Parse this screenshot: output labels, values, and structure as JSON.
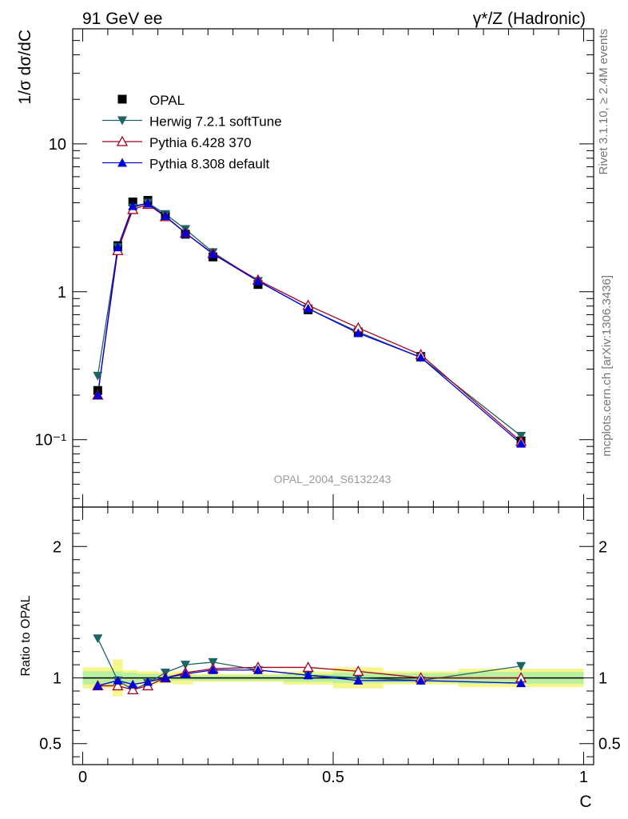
{
  "header": {
    "left": "91 GeV ee",
    "right": "γ*/Z (Hadronic)"
  },
  "side_labels": {
    "rivet": "Rivet 3.1.10, ≥ 2.4M events",
    "mcplots": "mcplots.cern.ch [arXiv:1306.3436]"
  },
  "watermark": "OPAL_2004_S6132243",
  "colors": {
    "data": "#000000",
    "herwig": "#1f6464",
    "pythia6": "#a0001e",
    "pythia8": "#0000d8",
    "band_inner": "#b8f0a0",
    "band_outer": "#f6f68a"
  },
  "chart_data": [
    {
      "type": "scatter",
      "panel": "main",
      "ylabel": "1/σ dσ/dC",
      "yscale": "log",
      "ylim": [
        0.035,
        60
      ],
      "xlim": [
        -0.02,
        1.02
      ],
      "y_ticks": [
        {
          "value": 0.1,
          "label": "10⁻¹"
        },
        {
          "value": 1,
          "label": "1"
        },
        {
          "value": 10,
          "label": "10"
        }
      ],
      "x": [
        0.03,
        0.07,
        0.1,
        0.13,
        0.165,
        0.205,
        0.26,
        0.35,
        0.45,
        0.55,
        0.675,
        0.875
      ],
      "series": [
        {
          "name": "OPAL",
          "marker": "square",
          "values": [
            0.215,
            2.05,
            4.05,
            4.15,
            3.25,
            2.45,
            1.72,
            1.12,
            0.755,
            0.535,
            0.365,
            0.098
          ]
        },
        {
          "name": "Herwig 7.2.1 softTune",
          "marker": "triangle-down",
          "values": [
            0.27,
            2.0,
            3.7,
            4.0,
            3.35,
            2.65,
            1.85,
            1.18,
            0.77,
            0.535,
            0.36,
            0.106
          ]
        },
        {
          "name": "Pythia 6.428 370",
          "marker": "triangle-up-open",
          "values": [
            0.2,
            1.9,
            3.6,
            3.9,
            3.22,
            2.5,
            1.81,
            1.2,
            0.81,
            0.57,
            0.375,
            0.097
          ]
        },
        {
          "name": "Pythia 8.308 default",
          "marker": "triangle-up",
          "values": [
            0.2,
            2.0,
            3.8,
            3.95,
            3.25,
            2.5,
            1.8,
            1.18,
            0.77,
            0.525,
            0.36,
            0.094
          ]
        }
      ]
    },
    {
      "type": "scatter",
      "panel": "ratio",
      "xlabel": "C",
      "ylabel": "Ratio to OPAL",
      "ylim": [
        0.34,
        2.3
      ],
      "xlim": [
        -0.02,
        1.02
      ],
      "x_ticks": [
        {
          "value": 0,
          "label": "0"
        },
        {
          "value": 0.5,
          "label": "0.5"
        },
        {
          "value": 1,
          "label": "1"
        }
      ],
      "y_ticks": [
        {
          "value": 0.5,
          "label": "0.5"
        },
        {
          "value": 1,
          "label": "1"
        },
        {
          "value": 2,
          "label": "2"
        }
      ],
      "x": [
        0.03,
        0.07,
        0.1,
        0.13,
        0.165,
        0.205,
        0.26,
        0.35,
        0.45,
        0.55,
        0.675,
        0.875
      ],
      "bins": [
        [
          0,
          0.06
        ],
        [
          0.06,
          0.08
        ],
        [
          0.08,
          0.11
        ],
        [
          0.11,
          0.15
        ],
        [
          0.15,
          0.18
        ],
        [
          0.18,
          0.22
        ],
        [
          0.22,
          0.3
        ],
        [
          0.3,
          0.4
        ],
        [
          0.4,
          0.5
        ],
        [
          0.5,
          0.6
        ],
        [
          0.6,
          0.75
        ],
        [
          0.75,
          1.0
        ]
      ],
      "band_inner": [
        0.05,
        0.05,
        0.04,
        0.03,
        0.025,
        0.02,
        0.02,
        0.02,
        0.03,
        0.04,
        0.035,
        0.045
      ],
      "band_outer": [
        0.08,
        0.14,
        0.06,
        0.05,
        0.04,
        0.05,
        0.03,
        0.03,
        0.05,
        0.08,
        0.05,
        0.07
      ],
      "series": [
        {
          "name": "Herwig 7.2.1 softTune",
          "values": [
            1.3,
            0.98,
            0.91,
            0.96,
            1.04,
            1.1,
            1.12,
            1.06,
            1.02,
            1.0,
            0.98,
            1.09
          ]
        },
        {
          "name": "Pythia 6.428 370",
          "values": [
            0.94,
            0.94,
            0.91,
            0.94,
            1.0,
            1.04,
            1.07,
            1.08,
            1.08,
            1.05,
            1.0,
            1.0
          ]
        },
        {
          "name": "Pythia 8.308 default",
          "values": [
            0.94,
            0.98,
            0.95,
            0.97,
            1.0,
            1.03,
            1.06,
            1.06,
            1.02,
            0.98,
            0.98,
            0.96
          ]
        }
      ]
    }
  ]
}
